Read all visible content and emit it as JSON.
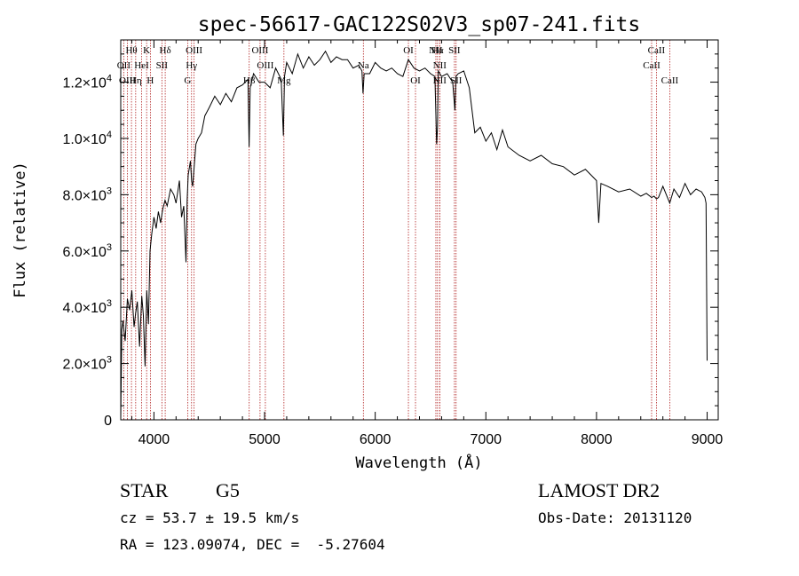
{
  "chart_data": {
    "type": "line",
    "title": "spec-56617-GAC122S02V3_sp07-241.fits",
    "xlabel": "Wavelength (Å)",
    "ylabel": "Flux (relative)",
    "xlim": [
      3700,
      9100
    ],
    "ylim": [
      0,
      13500
    ],
    "x_ticks": [
      {
        "value": 4000,
        "label": "4000"
      },
      {
        "value": 5000,
        "label": "5000"
      },
      {
        "value": 6000,
        "label": "6000"
      },
      {
        "value": 7000,
        "label": "7000"
      },
      {
        "value": 8000,
        "label": "8000"
      },
      {
        "value": 9000,
        "label": "9000"
      }
    ],
    "y_ticks": [
      {
        "value": 0,
        "mant": "0",
        "exp": ""
      },
      {
        "value": 2000,
        "mant": "2.0×10",
        "exp": "3"
      },
      {
        "value": 4000,
        "mant": "4.0×10",
        "exp": "3"
      },
      {
        "value": 6000,
        "mant": "6.0×10",
        "exp": "3"
      },
      {
        "value": 8000,
        "mant": "8.0×10",
        "exp": "3"
      },
      {
        "value": 10000,
        "mant": "1.0×10",
        "exp": "4"
      },
      {
        "value": 12000,
        "mant": "1.2×10",
        "exp": "4"
      }
    ],
    "grid": false,
    "line_color": "#000000",
    "marker_color": "#b22222",
    "series": [
      {
        "x": [
          3700,
          3710,
          3720,
          3740,
          3760,
          3780,
          3800,
          3820,
          3835,
          3850,
          3870,
          3890,
          3905,
          3920,
          3935,
          3950,
          3965,
          3980,
          4000,
          4020,
          4040,
          4060,
          4080,
          4100,
          4120,
          4150,
          4180,
          4200,
          4230,
          4250,
          4270,
          4290,
          4300,
          4310,
          4330,
          4340,
          4350,
          4380,
          4400,
          4430,
          4460,
          4500,
          4550,
          4600,
          4650,
          4700,
          4750,
          4800,
          4850,
          4860,
          4870,
          4900,
          4950,
          5000,
          5050,
          5100,
          5150,
          5170,
          5180,
          5200,
          5250,
          5300,
          5350,
          5400,
          5450,
          5500,
          5550,
          5600,
          5650,
          5700,
          5750,
          5800,
          5850,
          5880,
          5890,
          5900,
          5950,
          6000,
          6050,
          6100,
          6150,
          6200,
          6250,
          6300,
          6350,
          6400,
          6450,
          6500,
          6540,
          6555,
          6563,
          6570,
          6600,
          6650,
          6700,
          6720,
          6730,
          6750,
          6800,
          6850,
          6900,
          6950,
          7000,
          7050,
          7100,
          7150,
          7200,
          7300,
          7400,
          7500,
          7600,
          7700,
          7800,
          7900,
          8000,
          8020,
          8040,
          8100,
          8200,
          8300,
          8400,
          8450,
          8498,
          8520,
          8542,
          8560,
          8600,
          8662,
          8700,
          8750,
          8800,
          8850,
          8900,
          8950,
          8980,
          8990,
          9000
        ],
        "y": [
          0,
          3200,
          3500,
          2800,
          4300,
          3900,
          4600,
          3300,
          3800,
          4200,
          2600,
          4400,
          3700,
          1900,
          4600,
          3400,
          6000,
          6600,
          7200,
          6800,
          7400,
          7000,
          7500,
          7800,
          7600,
          8200,
          8000,
          7700,
          8500,
          7200,
          7600,
          5600,
          7800,
          8700,
          9200,
          8500,
          8300,
          9800,
          10000,
          10200,
          10800,
          11100,
          11500,
          11200,
          11600,
          11300,
          11800,
          11900,
          12100,
          9700,
          11800,
          12300,
          12000,
          12000,
          11800,
          12500,
          12100,
          10100,
          12200,
          12700,
          12300,
          13000,
          12500,
          12900,
          12600,
          12800,
          13100,
          12700,
          12900,
          12800,
          12800,
          12500,
          12600,
          12400,
          11600,
          12300,
          12300,
          12700,
          12500,
          12400,
          12500,
          12300,
          12200,
          12800,
          12500,
          12400,
          12500,
          12300,
          12200,
          9800,
          10400,
          12400,
          12200,
          12300,
          12000,
          11000,
          12200,
          12300,
          12400,
          11800,
          10200,
          10400,
          9900,
          10200,
          9600,
          10300,
          9700,
          9400,
          9200,
          9400,
          9100,
          9000,
          8700,
          8900,
          8500,
          7000,
          8400,
          8300,
          8100,
          8200,
          7950,
          8050,
          7900,
          7950,
          7850,
          7900,
          8300,
          7700,
          8200,
          7900,
          8400,
          8000,
          8200,
          8100,
          7900,
          7700,
          2100
        ]
      }
    ],
    "lines": [
      {
        "label": "Hθ",
        "x": 3797,
        "row": 0
      },
      {
        "label": "OII",
        "x": 3727,
        "row": 1
      },
      {
        "label": "OIII",
        "x": 3760,
        "row": 2
      },
      {
        "label": "Hη",
        "x": 3835,
        "row": 2
      },
      {
        "label": "HeI",
        "x": 3889,
        "row": 1
      },
      {
        "label": "K",
        "x": 3934,
        "row": 0
      },
      {
        "label": "H",
        "x": 3968,
        "row": 2
      },
      {
        "label": "SII",
        "x": 4072,
        "row": 1
      },
      {
        "label": "Hδ",
        "x": 4102,
        "row": 0
      },
      {
        "label": "OIII",
        "x": 4363,
        "row": 0
      },
      {
        "label": "Hγ",
        "x": 4340,
        "row": 1
      },
      {
        "label": "G",
        "x": 4305,
        "row": 2
      },
      {
        "label": "OIII",
        "x": 4959,
        "row": 0
      },
      {
        "label": "OIII",
        "x": 5007,
        "row": 1
      },
      {
        "label": "Hβ",
        "x": 4861,
        "row": 2
      },
      {
        "label": "Mg",
        "x": 5175,
        "row": 2
      },
      {
        "label": "Na",
        "x": 5893,
        "row": 1
      },
      {
        "label": "OI",
        "x": 6300,
        "row": 0
      },
      {
        "label": "OI",
        "x": 6364,
        "row": 2
      },
      {
        "label": "NII",
        "x": 6548,
        "row": 0
      },
      {
        "label": "Hα",
        "x": 6563,
        "row": 0
      },
      {
        "label": "NII",
        "x": 6583,
        "row": 1
      },
      {
        "label": "NII",
        "x": 6583,
        "row": 2
      },
      {
        "label": "SII",
        "x": 6716,
        "row": 0
      },
      {
        "label": "SII",
        "x": 6731,
        "row": 2
      },
      {
        "label": "CaII",
        "x": 8542,
        "row": 0
      },
      {
        "label": "CaII",
        "x": 8498,
        "row": 1
      },
      {
        "label": "CaII",
        "x": 8662,
        "row": 2
      }
    ]
  },
  "info": {
    "class": "STAR",
    "subclass": "G5",
    "survey": "LAMOST DR2",
    "cz": "cz = 53.7 ± 19.5 km/s",
    "obs_date": "Obs-Date: 20131120",
    "coords": "RA = 123.09074, DEC =  -5.27604"
  }
}
